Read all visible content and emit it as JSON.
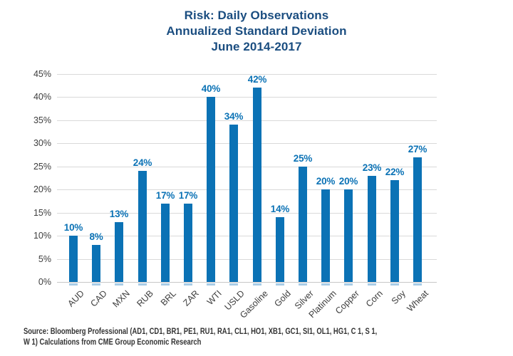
{
  "title": {
    "lines": [
      "Risk: Daily Observations",
      "Annualized Standard Deviation",
      "June 2014-2017"
    ]
  },
  "chart_data": {
    "type": "bar",
    "title": "Risk: Daily Observations Annualized Standard Deviation June 2014-2017",
    "categories": [
      "AUD",
      "CAD",
      "MXN",
      "RUB",
      "BRL",
      "ZAR",
      "WTI",
      "USLD",
      "Gasoline",
      "Gold",
      "Silver",
      "Platinum",
      "Copper",
      "Corn",
      "Soy",
      "Wheat"
    ],
    "values": [
      10,
      8,
      13,
      24,
      17,
      17,
      40,
      34,
      42,
      14,
      25,
      20,
      20,
      23,
      22,
      27
    ],
    "bar_labels": [
      "10%",
      "8%",
      "13%",
      "24%",
      "17%",
      "17%",
      "40%",
      "34%",
      "42%",
      "14%",
      "25%",
      "20%",
      "20%",
      "23%",
      "22%",
      "27%"
    ],
    "y_ticks": [
      "45%",
      "40%",
      "35%",
      "30%",
      "25%",
      "20%",
      "15%",
      "10%",
      "5%",
      "0%"
    ],
    "ylim": [
      0,
      45
    ],
    "grid": true,
    "legend": "none",
    "xlabel": "",
    "ylabel": "",
    "colors": {
      "bar": "#0b72b5",
      "bar_base_stub": "#a9cce6",
      "value_label": "#0b72b5",
      "title": "#1a4d80",
      "gridline": "#d9d9d9",
      "axis_line": "#c6c6c6",
      "tick_text": "#3d3d3d",
      "source_text": "#333333"
    }
  },
  "source": {
    "lines": [
      "Source: Bloomberg Professional (AD1, CD1, BR1, PE1, RU1, RA1, CL1, HO1, XB1, GC1, SI1, OL1, HG1, C 1, S 1,",
      "W 1) Calculations from CME Group Economic Research"
    ]
  }
}
